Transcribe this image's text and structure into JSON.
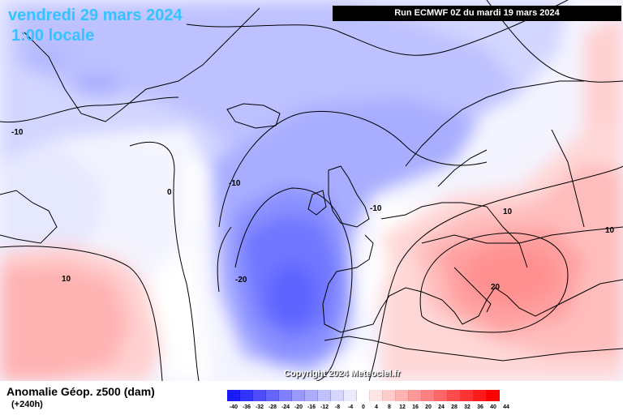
{
  "header": {
    "date": "vendredi 29 mars 2024",
    "time": "1:00 locale",
    "run": "Run ECMWF 0Z du mardi 19 mars 2024"
  },
  "map": {
    "copyright": "Copyright 2024 Meteociel.fr",
    "isolines": {
      "iso1": "-10",
      "iso2": "0",
      "iso3": "-10",
      "iso4": "-10",
      "iso5": "10",
      "iso6": "-20",
      "iso7": "10",
      "iso8": "10",
      "iso9": "20"
    }
  },
  "footer": {
    "title": "Anomalie Géop. z500 (dam)",
    "subtitle": "(+240h)"
  },
  "colorbar": {
    "labels": [
      "-40",
      "-36",
      "-32",
      "-28",
      "-24",
      "-20",
      "-16",
      "-12",
      "-8",
      "-4",
      "0",
      "4",
      "8",
      "12",
      "16",
      "20",
      "24",
      "28",
      "32",
      "36",
      "40",
      "44"
    ],
    "colors": [
      "#1a1aff",
      "#3333ff",
      "#4d4dff",
      "#6666ff",
      "#7f7fff",
      "#9999ff",
      "#ababff",
      "#c0c0ff",
      "#d6d6ff",
      "#ebebff",
      "#ffffff",
      "#ffe5e5",
      "#ffcccc",
      "#ffb3b3",
      "#ff9999",
      "#ff8080",
      "#ff6666",
      "#ff4d4d",
      "#ff3333",
      "#ff1a1a",
      "#ff0000"
    ]
  }
}
